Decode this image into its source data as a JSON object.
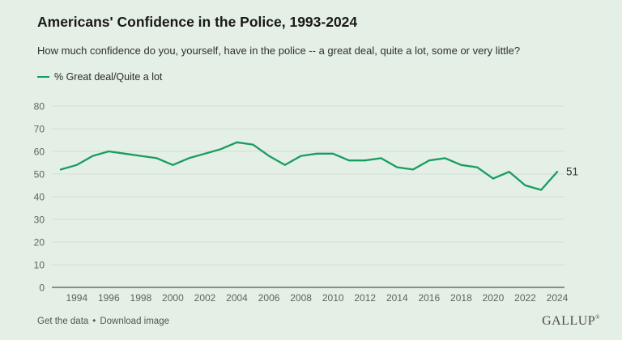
{
  "page": {
    "title": "Americans' Confidence in the Police, 1993-2024",
    "subtitle": "How much confidence do you, yourself, have in the police -- a great deal, quite a lot, some or very little?"
  },
  "legend": {
    "label": "% Great deal/Quite a lot"
  },
  "footer": {
    "link_get_data": "Get the data",
    "separator": "•",
    "link_download": "Download image",
    "logo": "GALLUP",
    "logo_mark": "®"
  },
  "colors": {
    "background": "#e4efe5",
    "line": "#189d5f",
    "grid": "#d2ddd2",
    "axis_line": "#555555",
    "tick_text": "#5c665c",
    "title_text": "#191919",
    "subtitle_text": "#2f2f2f",
    "legend_text": "#2b2b2b",
    "footer_text": "#4f584f",
    "logo_text": "#4b4b4b",
    "end_label_text": "#303030"
  },
  "chart_data": {
    "type": "line",
    "title": "Americans' Confidence in the Police, 1993-2024",
    "xlabel": "",
    "ylabel": "",
    "x": [
      1993,
      1994,
      1995,
      1996,
      1997,
      1998,
      1999,
      2000,
      2001,
      2002,
      2003,
      2004,
      2005,
      2006,
      2007,
      2008,
      2009,
      2010,
      2011,
      2012,
      2013,
      2014,
      2015,
      2016,
      2017,
      2018,
      2019,
      2020,
      2021,
      2022,
      2023,
      2024
    ],
    "series": [
      {
        "name": "% Great deal/Quite a lot",
        "values": [
          52,
          54,
          58,
          60,
          59,
          58,
          57,
          54,
          57,
          59,
          61,
          64,
          63,
          58,
          54,
          58,
          59,
          59,
          56,
          56,
          57,
          53,
          52,
          56,
          57,
          54,
          53,
          48,
          51,
          45,
          43,
          51
        ]
      }
    ],
    "xticks": [
      1994,
      1996,
      1998,
      2000,
      2002,
      2004,
      2006,
      2008,
      2010,
      2012,
      2014,
      2016,
      2018,
      2020,
      2022,
      2024
    ],
    "yticks": [
      0,
      10,
      20,
      30,
      40,
      50,
      60,
      70,
      80
    ],
    "xlim": [
      1993,
      2024
    ],
    "ylim": [
      0,
      80
    ],
    "grid": true,
    "legend_position": "top-left",
    "end_label": "51"
  }
}
